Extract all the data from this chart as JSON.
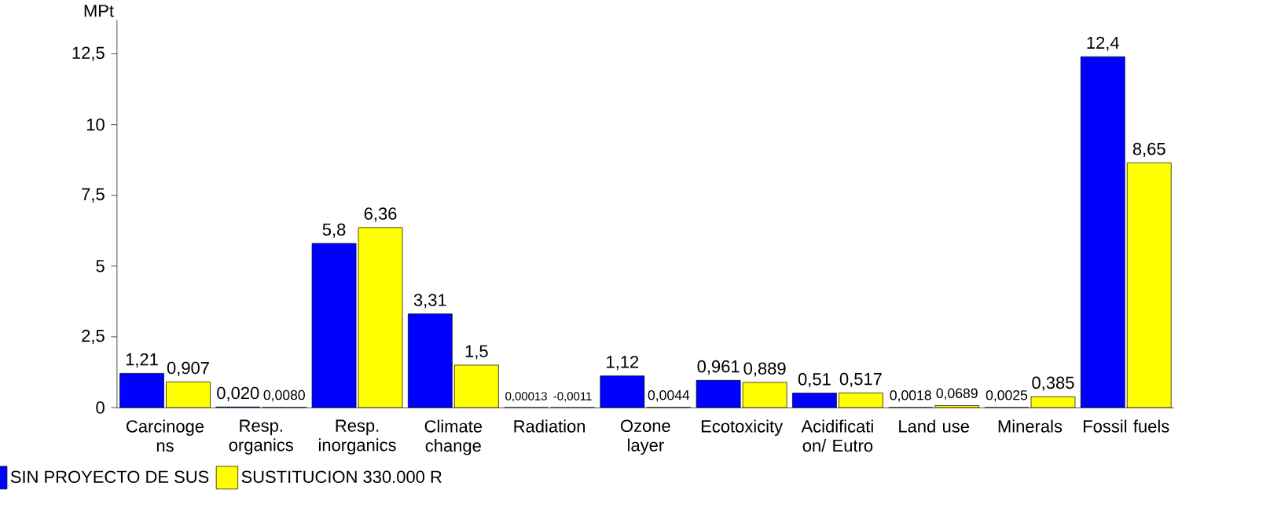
{
  "chart_data": {
    "type": "bar",
    "ylabel": "MPt",
    "categories": [
      "Carcinoge ns",
      "Resp. organics",
      "Resp. inorganics",
      "Climate change",
      "Radiation",
      "Ozone layer",
      "Ecotoxicity",
      "Acidificati on/ Eutro",
      "Land use",
      "Minerals",
      "Fossil fuels"
    ],
    "series": [
      {
        "name": "SIN PROYECTO DE SUS",
        "color": "#0000ff",
        "values": [
          1.21,
          0.02,
          5.8,
          3.31,
          0.00013,
          1.12,
          0.961,
          0.51,
          0.0018,
          0.0025,
          12.4
        ],
        "value_labels": [
          "1,21",
          "0,020",
          "5,8",
          "3,31",
          "0,00013",
          "1,12",
          "0,961",
          "0,51",
          "0,0018",
          "0,0025",
          "12,4"
        ]
      },
      {
        "name": "SUSTITUCION 330.000 R",
        "color": "#ffff00",
        "values": [
          0.907,
          0.008,
          6.36,
          1.5,
          -0.0011,
          0.0044,
          0.889,
          0.517,
          0.0689,
          0.385,
          8.65
        ],
        "value_labels": [
          "0,907",
          "0,0080",
          "6,36",
          "1,5",
          "-0,0011",
          "0,0044",
          "0,889",
          "0,517",
          "0,0689",
          "0,385",
          "8,65"
        ]
      }
    ],
    "ylim": [
      -0.01,
      13.7
    ],
    "yticks": [
      0,
      {
        "value": 2.5,
        "label": "2,5"
      },
      5,
      {
        "value": 7.5,
        "label": "7,5"
      },
      10,
      {
        "value": 12.5,
        "label": "12,5"
      }
    ],
    "grid": false,
    "legend": "bottom left"
  }
}
